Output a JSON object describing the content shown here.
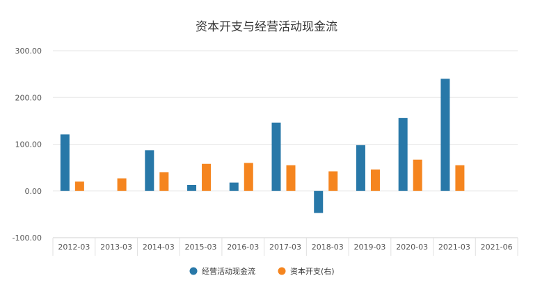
{
  "chart_data": {
    "type": "bar",
    "title": "资本开支与经营活动现金流",
    "categories": [
      "2012-03",
      "2013-03",
      "2014-03",
      "2015-03",
      "2016-03",
      "2017-03",
      "2018-03",
      "2019-03",
      "2020-03",
      "2021-03",
      "2021-06"
    ],
    "series": [
      {
        "name": "经营活动现金流",
        "color": "#2878a8",
        "values": [
          121,
          0,
          87,
          13,
          18,
          146,
          -47,
          98,
          156,
          240,
          null
        ]
      },
      {
        "name": "资本开支(右)",
        "color": "#f5851f",
        "values": [
          20,
          27,
          40,
          58,
          60,
          55,
          42,
          46,
          67,
          55,
          null
        ]
      }
    ],
    "ylim": [
      -100,
      300
    ],
    "yticks": [
      "300.00",
      "200.00",
      "100.00",
      "0.00",
      "-100.00"
    ],
    "ytick_values": [
      300,
      200,
      100,
      0,
      -100
    ],
    "grid": true,
    "legend_position": "bottom-center"
  }
}
